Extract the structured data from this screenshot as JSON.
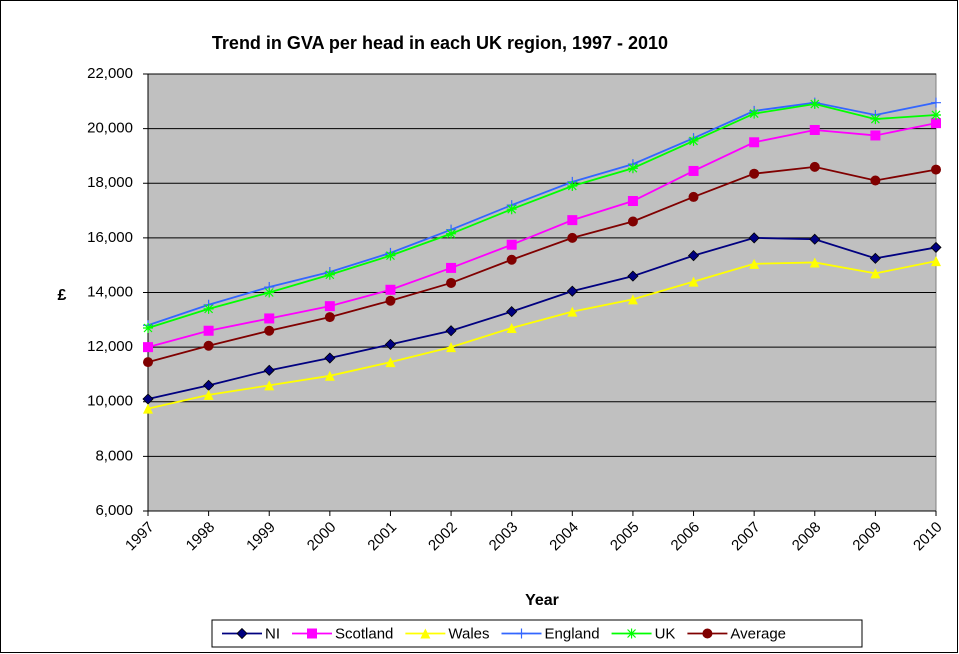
{
  "chart_data": {
    "type": "line",
    "title": "Trend in GVA per head in each UK region, 1997 - 2010",
    "x_label": "Year",
    "y_label": "£",
    "categories": [
      "1997",
      "1998",
      "1999",
      "2000",
      "2001",
      "2002",
      "2003",
      "2004",
      "2005",
      "2006",
      "2007",
      "2008",
      "2009",
      "2010"
    ],
    "series": [
      {
        "name": "NI",
        "color": "#000080",
        "marker": "diamond",
        "values": [
          10100,
          10600,
          11150,
          11600,
          12100,
          12600,
          13300,
          14050,
          14600,
          15350,
          16000,
          15950,
          15250,
          15650
        ]
      },
      {
        "name": "Scotland",
        "color": "#ff00ff",
        "marker": "square",
        "values": [
          12000,
          12600,
          13050,
          13500,
          14100,
          14900,
          15750,
          16650,
          17350,
          18450,
          19500,
          19950,
          19750,
          20200
        ]
      },
      {
        "name": "Wales",
        "color": "#ffff00",
        "marker": "triangle",
        "values": [
          9750,
          10250,
          10600,
          10950,
          11450,
          12000,
          12700,
          13300,
          13750,
          14400,
          15050,
          15100,
          14700,
          15150
        ]
      },
      {
        "name": "England",
        "color": "#3366ff",
        "marker": "plus",
        "values": [
          12800,
          13550,
          14200,
          14750,
          15450,
          16300,
          17200,
          18050,
          18700,
          19650,
          20650,
          20950,
          20500,
          20950
        ]
      },
      {
        "name": "UK",
        "color": "#00ff00",
        "marker": "asterisk",
        "values": [
          12700,
          13400,
          14000,
          14650,
          15350,
          16150,
          17050,
          17900,
          18550,
          19550,
          20550,
          20900,
          20350,
          20500
        ]
      },
      {
        "name": "Average",
        "color": "#800000",
        "marker": "circle",
        "values": [
          11450,
          12050,
          12600,
          13100,
          13700,
          14350,
          15200,
          16000,
          16600,
          17500,
          18350,
          18600,
          18100,
          18500
        ]
      }
    ],
    "ylim": [
      6000,
      22000
    ],
    "yticks": [
      {
        "value": 6000,
        "label": "6,000"
      },
      {
        "value": 8000,
        "label": "8,000"
      },
      {
        "value": 10000,
        "label": "10,000"
      },
      {
        "value": 12000,
        "label": "12,000"
      },
      {
        "value": 14000,
        "label": "14,000"
      },
      {
        "value": 16000,
        "label": "16,000"
      },
      {
        "value": 18000,
        "label": "18,000"
      },
      {
        "value": 20000,
        "label": "20,000"
      },
      {
        "value": 22000,
        "label": "22,000"
      }
    ],
    "grid": true,
    "plot_background": "#c0c0c0",
    "legend": "bottom"
  }
}
